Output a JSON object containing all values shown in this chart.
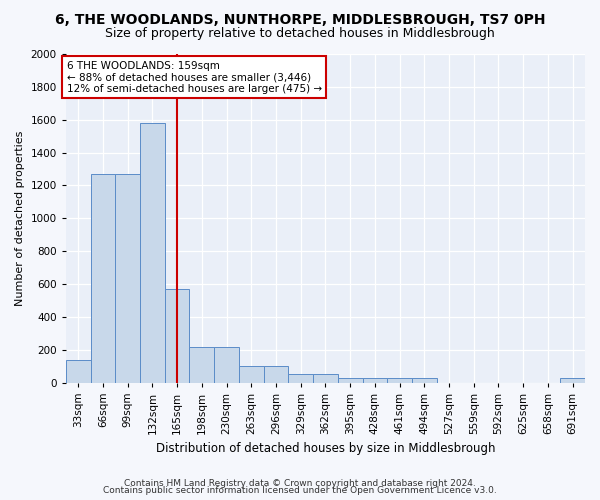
{
  "title": "6, THE WOODLANDS, NUNTHORPE, MIDDLESBROUGH, TS7 0PH",
  "subtitle": "Size of property relative to detached houses in Middlesbrough",
  "xlabel": "Distribution of detached houses by size in Middlesbrough",
  "ylabel": "Number of detached properties",
  "footnote1": "Contains HM Land Registry data © Crown copyright and database right 2024.",
  "footnote2": "Contains public sector information licensed under the Open Government Licence v3.0.",
  "annotation_line1": "6 THE WOODLANDS: 159sqm",
  "annotation_line2": "← 88% of detached houses are smaller (3,446)",
  "annotation_line3": "12% of semi-detached houses are larger (475) →",
  "bar_labels": [
    "33sqm",
    "66sqm",
    "99sqm",
    "132sqm",
    "165sqm",
    "198sqm",
    "230sqm",
    "263sqm",
    "296sqm",
    "329sqm",
    "362sqm",
    "395sqm",
    "428sqm",
    "461sqm",
    "494sqm",
    "527sqm",
    "559sqm",
    "592sqm",
    "625sqm",
    "658sqm",
    "691sqm"
  ],
  "bar_values": [
    140,
    1270,
    1270,
    1580,
    570,
    215,
    215,
    100,
    100,
    50,
    50,
    25,
    25,
    25,
    25,
    0,
    0,
    0,
    0,
    0,
    25
  ],
  "bar_bin_starts": [
    16.5,
    49.5,
    82.5,
    115.5,
    148.5,
    181.5,
    214.5,
    247.5,
    280.5,
    313.5,
    346.5,
    379.5,
    412.5,
    445.5,
    478.5,
    511.5,
    544.5,
    577.5,
    610.5,
    643.5,
    676.5
  ],
  "bin_width": 33,
  "bar_color": "#c8d8ea",
  "bar_edge_color": "#5b8cc8",
  "vline_color": "#cc0000",
  "vline_x": 165,
  "fig_bg_color": "#f5f7fc",
  "axes_bg_color": "#eaeff8",
  "ylim": [
    0,
    2000
  ],
  "yticks": [
    0,
    200,
    400,
    600,
    800,
    1000,
    1200,
    1400,
    1600,
    1800,
    2000
  ],
  "title_fontsize": 10,
  "subtitle_fontsize": 9,
  "ylabel_fontsize": 8,
  "xlabel_fontsize": 8.5,
  "tick_fontsize": 7.5,
  "annot_fontsize": 7.5,
  "footnote_fontsize": 6.5
}
